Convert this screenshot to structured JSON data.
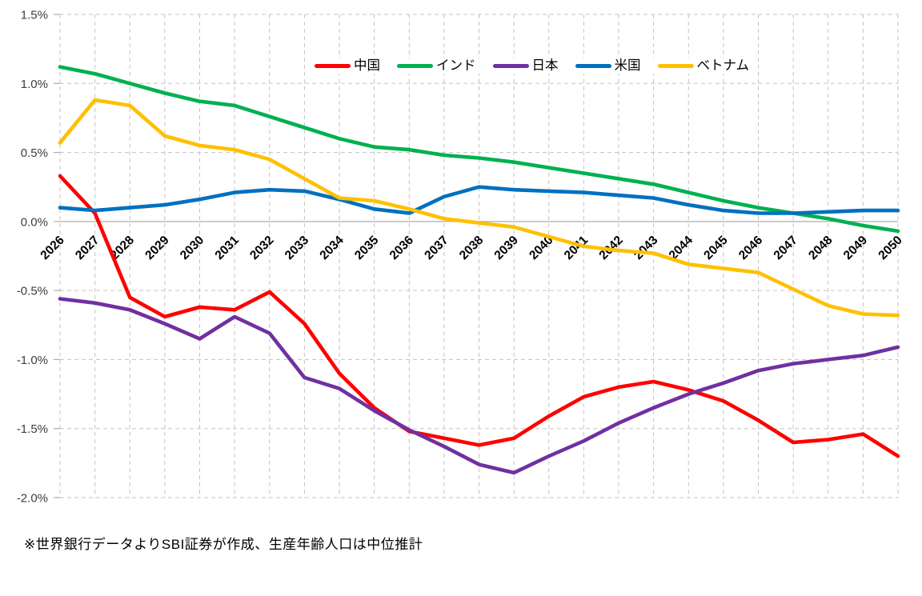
{
  "footnote": "※世界銀行データよりSBI証券が作成、生産年齢人口は中位推計",
  "chart_data": {
    "type": "line",
    "title": "",
    "xlabel": "",
    "ylabel": "",
    "x": [
      2026,
      2027,
      2028,
      2029,
      2030,
      2031,
      2032,
      2033,
      2034,
      2035,
      2036,
      2037,
      2038,
      2039,
      2040,
      2041,
      2042,
      2043,
      2044,
      2045,
      2046,
      2047,
      2048,
      2049,
      2050
    ],
    "x_tick_labels": [
      "2026",
      "2027",
      "2028",
      "2029",
      "2030",
      "2031",
      "2032",
      "2033",
      "2034",
      "2035",
      "2036",
      "2037",
      "2038",
      "2039",
      "2040",
      "2041",
      "2042",
      "2043",
      "2044",
      "2045",
      "2046",
      "2047",
      "2048",
      "2049",
      "2050"
    ],
    "y_ticks": [
      1.5,
      1.0,
      0.5,
      0.0,
      -0.5,
      -1.0,
      -1.5,
      -2.0
    ],
    "y_tick_labels": [
      "1.5%",
      "1.0%",
      "0.5%",
      "0.0%",
      "-0.5%",
      "-1.0%",
      "-1.5%",
      "-2.0%"
    ],
    "ylim": [
      -2.0,
      1.5
    ],
    "grid": true,
    "legend_position": "top-center-inside",
    "series": [
      {
        "id": "china",
        "name": "中国",
        "color": "#FF0000",
        "values": [
          0.33,
          0.06,
          -0.55,
          -0.69,
          -0.62,
          -0.64,
          -0.51,
          -0.74,
          -1.1,
          -1.35,
          -1.52,
          -1.57,
          -1.62,
          -1.57,
          -1.41,
          -1.27,
          -1.2,
          -1.16,
          -1.22,
          -1.3,
          -1.44,
          -1.6,
          -1.58,
          -1.54,
          -1.7
        ]
      },
      {
        "id": "india",
        "name": "インド",
        "color": "#00B050",
        "values": [
          1.12,
          1.07,
          1.0,
          0.93,
          0.87,
          0.84,
          0.76,
          0.68,
          0.6,
          0.54,
          0.52,
          0.48,
          0.46,
          0.43,
          0.39,
          0.35,
          0.31,
          0.27,
          0.21,
          0.15,
          0.1,
          0.06,
          0.02,
          -0.03,
          -0.07
        ]
      },
      {
        "id": "japan",
        "name": "日本",
        "color": "#7030A0",
        "values": [
          -0.56,
          -0.59,
          -0.64,
          -0.74,
          -0.85,
          -0.69,
          -0.81,
          -1.13,
          -1.21,
          -1.37,
          -1.51,
          -1.63,
          -1.76,
          -1.82,
          -1.7,
          -1.59,
          -1.46,
          -1.35,
          -1.25,
          -1.17,
          -1.08,
          -1.03,
          -1.0,
          -0.97,
          -0.91
        ]
      },
      {
        "id": "usa",
        "name": "米国",
        "color": "#0070C0",
        "values": [
          0.1,
          0.08,
          0.1,
          0.12,
          0.16,
          0.21,
          0.23,
          0.22,
          0.16,
          0.09,
          0.06,
          0.18,
          0.25,
          0.23,
          0.22,
          0.21,
          0.19,
          0.17,
          0.12,
          0.08,
          0.06,
          0.06,
          0.07,
          0.08,
          0.08
        ]
      },
      {
        "id": "vietnam",
        "name": "ベトナム",
        "color": "#FFC000",
        "values": [
          0.57,
          0.88,
          0.84,
          0.62,
          0.55,
          0.52,
          0.45,
          0.31,
          0.17,
          0.15,
          0.09,
          0.02,
          -0.01,
          -0.04,
          -0.11,
          -0.18,
          -0.21,
          -0.23,
          -0.31,
          -0.34,
          -0.37,
          -0.49,
          -0.61,
          -0.67,
          -0.68
        ]
      }
    ],
    "style": {
      "grid_color": "#C3C3C3",
      "zero_axis_color": "#ADADAD",
      "line_width": 4.6
    }
  }
}
